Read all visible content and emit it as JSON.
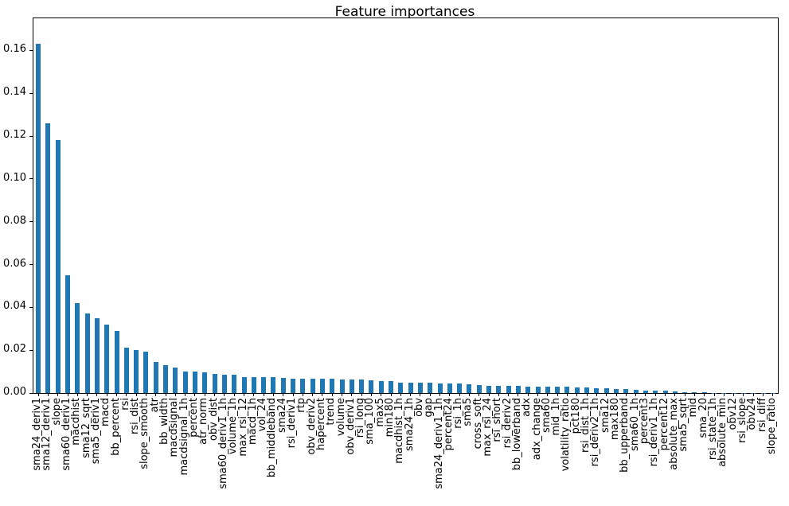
{
  "chart_data": {
    "type": "bar",
    "title": "Feature importances",
    "xlabel": "",
    "ylabel": "",
    "grid": false,
    "legend": null,
    "bar_color": "#1f77b4",
    "axis_color": "#000000",
    "ylim": [
      0,
      0.175
    ],
    "yticks": [
      "0.00",
      "0.02",
      "0.04",
      "0.06",
      "0.08",
      "0.10",
      "0.12",
      "0.14",
      "0.16"
    ],
    "ytick_values": [
      0.0,
      0.02,
      0.04,
      0.06,
      0.08,
      0.1,
      0.12,
      0.14,
      0.16
    ],
    "categories": [
      "sma24_deriv1",
      "sma12_deriv1",
      "slope",
      "sma60_deriv1",
      "macdhist",
      "sma12_sqrt",
      "sma5_deriv1",
      "macd",
      "bb_percent",
      "rsi",
      "rsi_dist",
      "slope_smooth",
      "atr",
      "bb_width",
      "macdsignal",
      "macdsignal_1h",
      "percent",
      "atr_norm",
      "obv_dist",
      "sma60_deriv1_1h",
      "volume_1h",
      "max_rsi_12",
      "macd_1h",
      "vol_24",
      "bb_middleband",
      "sma24",
      "rsi_deriv1",
      "rtp",
      "obv_deriv2",
      "hapercent",
      "trend",
      "volume",
      "obv_deriv1",
      "rsi_long",
      "sma_100",
      "max5",
      "min180",
      "macdhist_1h",
      "sma24_1h",
      "obv",
      "gap",
      "sma24_deriv1_1h",
      "percent24",
      "rsi_1h",
      "sma5",
      "cross_soft",
      "max_rsi_24",
      "rsi_short",
      "rsi_deriv2",
      "bb_lowerband",
      "adx",
      "adx_change",
      "sma60",
      "mid_1h",
      "volatility_ratio",
      "pct180",
      "rsi_dist_1h",
      "rsi_deriv2_1h",
      "sma12",
      "max180",
      "bb_upperband",
      "sma60_1h",
      "percent3",
      "rsi_deriv1_1h",
      "percent12",
      "absolute_max",
      "sma5_sqrt",
      "mid",
      "sma_20",
      "rsi_state_1h",
      "absolute_min",
      "obv12",
      "rsi_slope",
      "obv24",
      "rsi_diff",
      "slope_ratio"
    ],
    "values": [
      0.163,
      0.126,
      0.118,
      0.055,
      0.042,
      0.037,
      0.035,
      0.032,
      0.029,
      0.021,
      0.02,
      0.0195,
      0.0145,
      0.013,
      0.012,
      0.0102,
      0.0101,
      0.0098,
      0.009,
      0.0085,
      0.0084,
      0.0076,
      0.0075,
      0.0074,
      0.0073,
      0.007,
      0.0068,
      0.0068,
      0.0067,
      0.0066,
      0.0066,
      0.0065,
      0.0064,
      0.0063,
      0.0059,
      0.0055,
      0.0054,
      0.005,
      0.0049,
      0.0049,
      0.0047,
      0.0046,
      0.0044,
      0.0043,
      0.004,
      0.0036,
      0.0035,
      0.0034,
      0.0033,
      0.0032,
      0.0031,
      0.003,
      0.003,
      0.0029,
      0.0028,
      0.0027,
      0.0026,
      0.0023,
      0.0022,
      0.0018,
      0.0017,
      0.0016,
      0.0013,
      0.0013,
      0.001,
      0.0006,
      0.0003,
      0.0002,
      0.0002,
      0.0001,
      0.0001,
      0.0001,
      0.0001,
      0.0001,
      5e-05,
      3e-05
    ]
  }
}
